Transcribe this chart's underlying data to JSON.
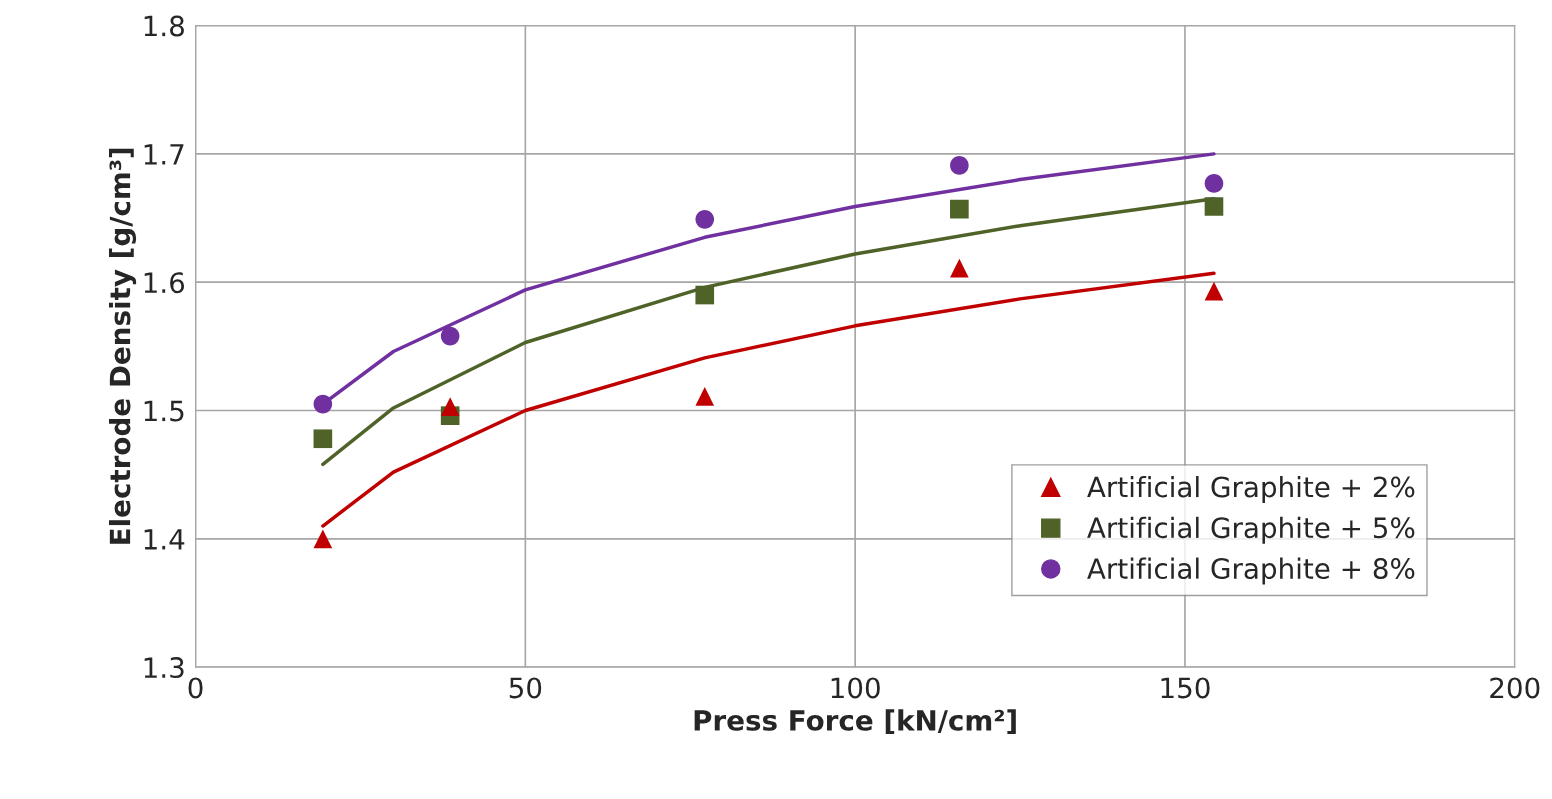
{
  "chart_data": {
    "type": "scatter",
    "xlabel": "Press Force [kN/cm²]",
    "ylabel": "Electrode Density [g/cm³]",
    "xlim": [
      0,
      200
    ],
    "xticks": [
      0,
      50,
      100,
      150,
      200
    ],
    "ylim": [
      1.3,
      1.8
    ],
    "yticks": [
      1.3,
      1.4,
      1.5,
      1.6,
      1.7,
      1.8
    ],
    "grid": true,
    "legend": "bottom right",
    "series": [
      {
        "name": "Artificial Graphite + 2%",
        "color": "#c00000",
        "marker": "triangle",
        "x": [
          19.3,
          38.6,
          77.2,
          115.8,
          154.4
        ],
        "values": [
          1.4,
          1.503,
          1.511,
          1.611,
          1.593
        ]
      },
      {
        "name": "Artificial Graphite + 5%",
        "color": "#4f6228",
        "marker": "square",
        "x": [
          19.3,
          38.6,
          77.2,
          115.8,
          154.4
        ],
        "values": [
          1.478,
          1.496,
          1.59,
          1.657,
          1.659
        ]
      },
      {
        "name": "Artificial Graphite + 8%",
        "color": "#7030a0",
        "marker": "circle",
        "x": [
          19.3,
          38.6,
          77.2,
          115.8,
          154.4
        ],
        "values": [
          1.505,
          1.558,
          1.649,
          1.691,
          1.677
        ]
      },
      {
        "type": "line",
        "color": "#c00000",
        "marker": "none",
        "x": [
          19.3,
          30,
          50,
          77.2,
          100,
          125,
          154.4
        ],
        "values": [
          1.41,
          1.452,
          1.5,
          1.541,
          1.566,
          1.587,
          1.607
        ]
      },
      {
        "type": "line",
        "color": "#4f6228",
        "marker": "none",
        "x": [
          19.3,
          30,
          50,
          77.2,
          100,
          125,
          154.4
        ],
        "values": [
          1.458,
          1.502,
          1.553,
          1.596,
          1.622,
          1.644,
          1.665
        ]
      },
      {
        "type": "line",
        "color": "#7030a0",
        "marker": "none",
        "x": [
          19.3,
          30,
          50,
          77.2,
          100,
          125,
          154.4
        ],
        "values": [
          1.505,
          1.546,
          1.594,
          1.635,
          1.659,
          1.68,
          1.7
        ]
      }
    ]
  }
}
